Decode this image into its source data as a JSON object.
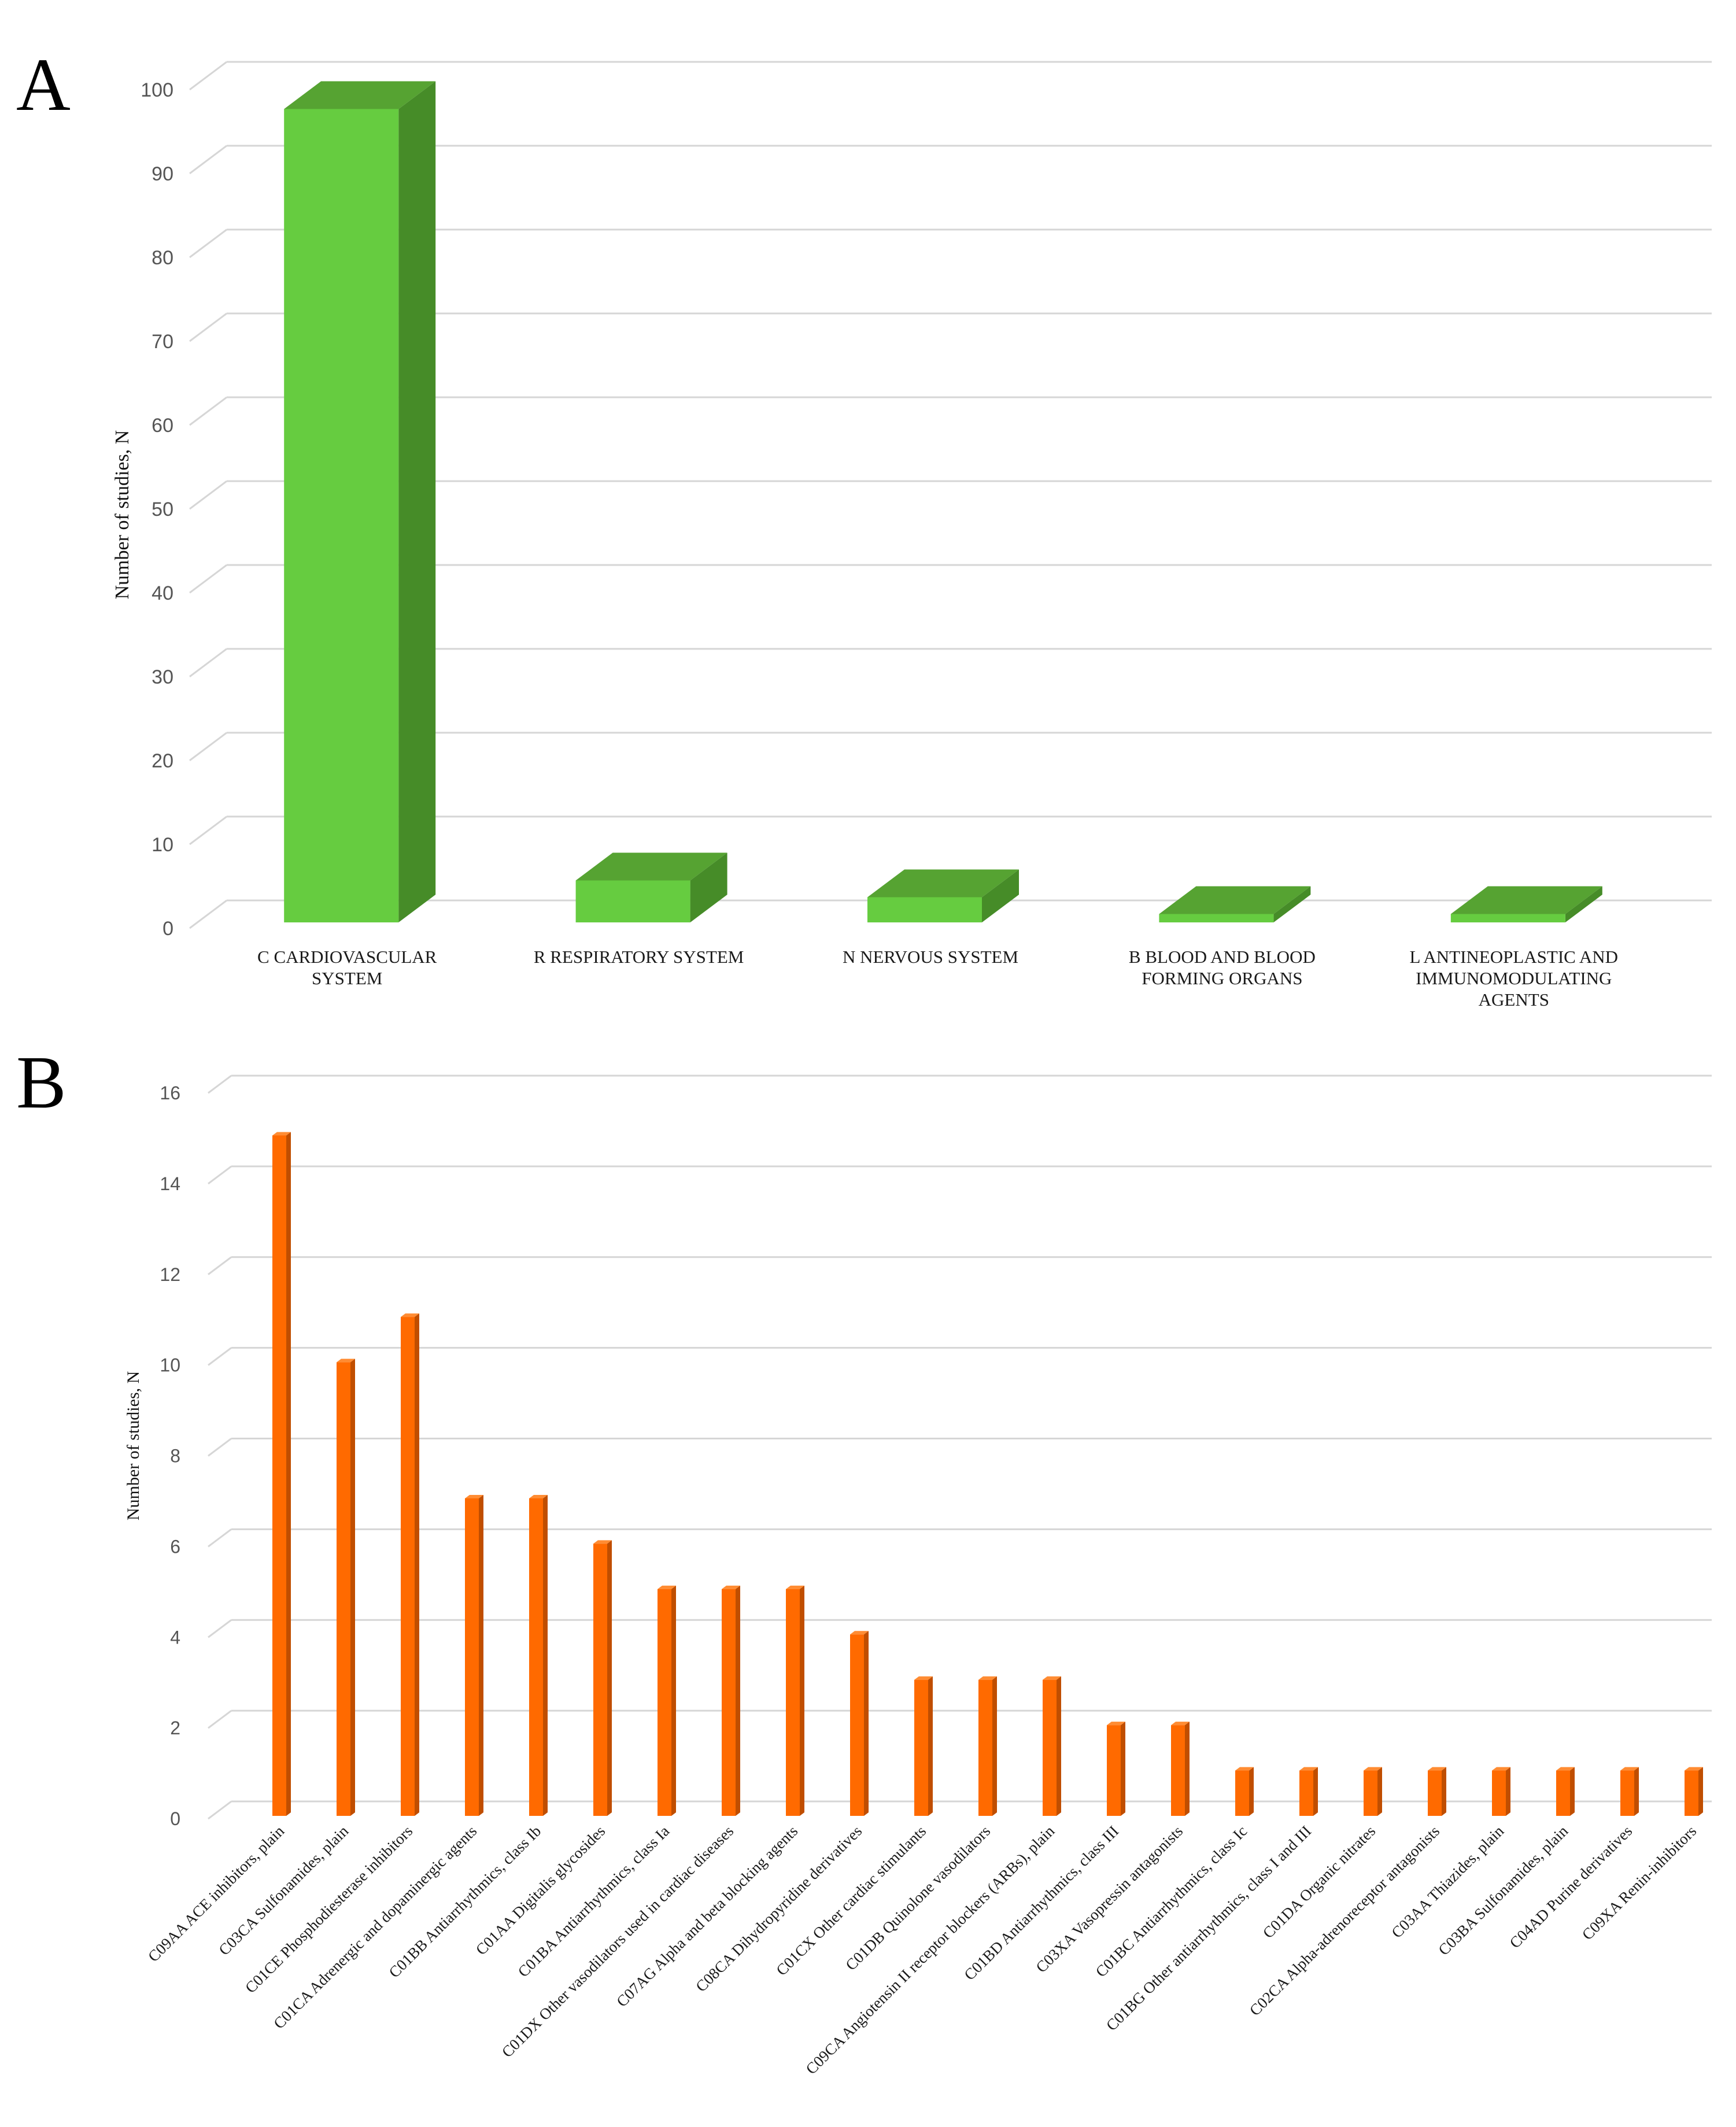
{
  "chart_data": [
    {
      "panel": "A",
      "type": "bar",
      "style": "3d",
      "ylabel": "Number of studies, N",
      "xlabel": "",
      "ylim": [
        0,
        100
      ],
      "yticks": [
        "0",
        "10",
        "20",
        "30",
        "40",
        "50",
        "60",
        "70",
        "80",
        "90",
        "100"
      ],
      "categories": [
        [
          "C CARDIOVASCULAR",
          "SYSTEM"
        ],
        [
          "R RESPIRATORY SYSTEM"
        ],
        [
          "N NERVOUS SYSTEM"
        ],
        [
          "B BLOOD AND BLOOD",
          "FORMING ORGANS"
        ],
        [
          "L ANTINEOPLASTIC AND",
          "IMMUNOMODULATING",
          "AGENTS"
        ]
      ],
      "values": [
        97,
        5,
        3,
        1,
        1
      ],
      "colors": {
        "front": "#66cc40",
        "side": "#468c28",
        "top": "#56a332"
      }
    },
    {
      "panel": "B",
      "type": "bar",
      "style": "3d",
      "ylabel": "Number of studies, N",
      "xlabel": "",
      "ylim": [
        0,
        16
      ],
      "yticks": [
        "0",
        "2",
        "4",
        "6",
        "8",
        "10",
        "12",
        "14",
        "16"
      ],
      "categories": [
        "C09AA ACE inhibitors, plain",
        "C03CA Sulfonamides, plain",
        "C01CE Phosphodiesterase inhibitors",
        "C01CA Adrenergic and dopaminergic agents",
        "C01BB Antiarrhythmics, class Ib",
        "C01AA Digitalis glycosides",
        "C01BA Antiarrhythmics, class Ia",
        "C01DX Other vasodilators used in cardiac diseases",
        "C07AG Alpha and beta blocking agents",
        "C08CA Dihydropyridine derivatives",
        "C01CX Other cardiac stimulants",
        "C01DB Quinolone vasodilators",
        "C09CA Angiotensin II receptor blockers (ARBs), plain",
        "C01BD Antiarrhythmics, class III",
        "C03XA Vasopressin antagonists",
        "C01BC Antiarrhythmics, class Ic",
        "C01BG Other antiarrhythmics, class I and III",
        "C01DA Organic nitrates",
        "C02CA Alpha-adrenoreceptor antagonists",
        "C03AA Thiazides, plain",
        "C03BA Sulfonamides, plain",
        "C04AD Purine derivatives",
        "C09XA Renin-inhibitors"
      ],
      "values": [
        15,
        10,
        11,
        7,
        7,
        6,
        5,
        5,
        5,
        4,
        3,
        3,
        3,
        2,
        2,
        1,
        1,
        1,
        1,
        1,
        1,
        1,
        1
      ],
      "colors": {
        "front": "#ff6a00",
        "side": "#c04e00",
        "top": "#ff8c33"
      }
    }
  ]
}
